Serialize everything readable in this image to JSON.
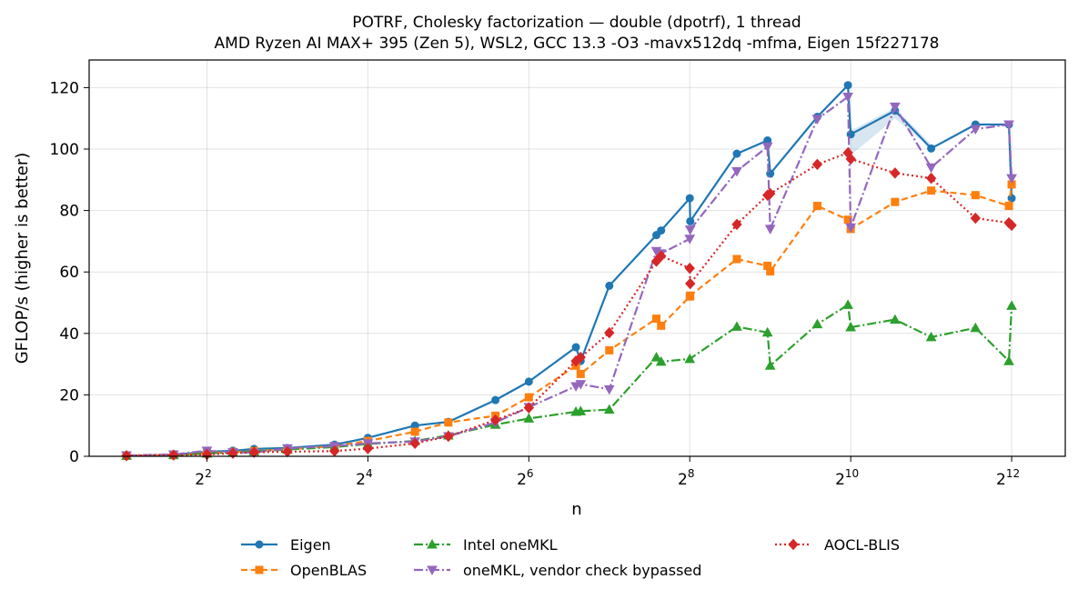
{
  "chart_data": {
    "type": "line",
    "title": "POTRF, Cholesky factorization — double (dpotrf), 1 thread",
    "subtitle": "AMD Ryzen AI MAX+ 395 (Zen 5), WSL2, GCC 13.3 -O3 -mavx512dq -mfma, Eigen 15f227178",
    "xlabel": "n",
    "ylabel": "GFLOP/s (higher is better)",
    "x_scale": "log2",
    "xlim": [
      1.45,
      6500
    ],
    "ylim": [
      0,
      129
    ],
    "x_ticks": [
      {
        "value": 4,
        "base": "2",
        "exp": "2"
      },
      {
        "value": 16,
        "base": "2",
        "exp": "4"
      },
      {
        "value": 64,
        "base": "2",
        "exp": "6"
      },
      {
        "value": 256,
        "base": "2",
        "exp": "8"
      },
      {
        "value": 1024,
        "base": "2",
        "exp": "10"
      },
      {
        "value": 4096,
        "base": "2",
        "exp": "12"
      }
    ],
    "y_ticks": [
      0,
      20,
      40,
      60,
      80,
      100,
      120
    ],
    "grid": true,
    "legend_position": "below",
    "series": [
      {
        "name": "Eigen",
        "color": "#1f77b4",
        "marker": "circle",
        "dash": "",
        "points": [
          [
            2,
            0.2
          ],
          [
            3,
            0.5
          ],
          [
            4,
            1.5
          ],
          [
            5,
            1.8
          ],
          [
            6,
            2.4
          ],
          [
            8,
            2.7
          ],
          [
            12,
            3.8
          ],
          [
            16,
            6.0
          ],
          [
            24,
            10.0
          ],
          [
            32,
            11.2
          ],
          [
            48,
            18.3
          ],
          [
            64,
            24.3
          ],
          [
            96,
            35.5
          ],
          [
            100,
            31.0
          ],
          [
            128,
            55.5
          ],
          [
            192,
            72.0
          ],
          [
            200,
            73.5
          ],
          [
            256,
            84.0
          ],
          [
            257,
            76.5
          ],
          [
            384,
            98.5
          ],
          [
            500,
            102.8
          ],
          [
            512,
            92.0
          ],
          [
            768,
            110.5
          ],
          [
            1000,
            120.8
          ],
          [
            1024,
            104.8
          ],
          [
            1500,
            112.5
          ],
          [
            2048,
            100.2
          ],
          [
            3000,
            108.0
          ],
          [
            4000,
            108.0
          ],
          [
            4096,
            84.0
          ]
        ]
      },
      {
        "name": "OpenBLAS",
        "color": "#ff7f0e",
        "marker": "square",
        "dash": "7,4",
        "points": [
          [
            2,
            0.2
          ],
          [
            3,
            0.4
          ],
          [
            4,
            1.0
          ],
          [
            5,
            1.4
          ],
          [
            6,
            1.7
          ],
          [
            8,
            2.3
          ],
          [
            12,
            3.3
          ],
          [
            16,
            5.0
          ],
          [
            24,
            8.0
          ],
          [
            32,
            11.0
          ],
          [
            48,
            13.2
          ],
          [
            64,
            19.2
          ],
          [
            96,
            29.5
          ],
          [
            100,
            26.8
          ],
          [
            128,
            34.5
          ],
          [
            192,
            44.8
          ],
          [
            200,
            42.5
          ],
          [
            256,
            52.0
          ],
          [
            257,
            52.3
          ],
          [
            384,
            64.2
          ],
          [
            500,
            62.0
          ],
          [
            512,
            60.2
          ],
          [
            768,
            81.5
          ],
          [
            1000,
            77.0
          ],
          [
            1024,
            74.0
          ],
          [
            1500,
            82.8
          ],
          [
            2048,
            86.5
          ],
          [
            3000,
            85.0
          ],
          [
            4000,
            81.5
          ],
          [
            4096,
            88.5
          ]
        ]
      },
      {
        "name": "Intel oneMKL",
        "color": "#2ca02c",
        "marker": "triangle-up",
        "dash": "10,3,2,3",
        "points": [
          [
            2,
            0.2
          ],
          [
            3,
            0.4
          ],
          [
            4,
            0.9
          ],
          [
            5,
            1.3
          ],
          [
            6,
            1.6
          ],
          [
            8,
            2.2
          ],
          [
            12,
            3.0
          ],
          [
            16,
            4.0
          ],
          [
            24,
            5.0
          ],
          [
            32,
            6.8
          ],
          [
            48,
            10.3
          ],
          [
            64,
            12.3
          ],
          [
            96,
            14.5
          ],
          [
            100,
            14.7
          ],
          [
            128,
            15.2
          ],
          [
            192,
            32.2
          ],
          [
            200,
            30.8
          ],
          [
            256,
            31.7
          ],
          [
            384,
            42.2
          ],
          [
            500,
            40.3
          ],
          [
            512,
            29.5
          ],
          [
            768,
            43.0
          ],
          [
            1000,
            49.3
          ],
          [
            1024,
            42.0
          ],
          [
            1500,
            44.5
          ],
          [
            2048,
            38.8
          ],
          [
            3000,
            41.8
          ],
          [
            4000,
            31.0
          ],
          [
            4096,
            49.0
          ]
        ]
      },
      {
        "name": "oneMKL, vendor check bypassed",
        "color": "#9467bd",
        "marker": "triangle-down",
        "dash": "10,3,2,3",
        "points": [
          [
            2,
            0.3
          ],
          [
            3,
            0.6
          ],
          [
            4,
            1.8
          ],
          [
            5,
            1.3
          ],
          [
            6,
            1.2
          ],
          [
            8,
            2.6
          ],
          [
            12,
            3.3
          ],
          [
            16,
            4.2
          ],
          [
            24,
            4.8
          ],
          [
            32,
            6.5
          ],
          [
            48,
            11.0
          ],
          [
            64,
            16.0
          ],
          [
            96,
            22.8
          ],
          [
            100,
            23.5
          ],
          [
            128,
            21.8
          ],
          [
            192,
            66.8
          ],
          [
            200,
            66.0
          ],
          [
            256,
            70.8
          ],
          [
            257,
            73.8
          ],
          [
            384,
            92.8
          ],
          [
            500,
            100.8
          ],
          [
            512,
            74.0
          ],
          [
            768,
            109.8
          ],
          [
            1000,
            117.0
          ],
          [
            1024,
            74.5
          ],
          [
            1500,
            113.8
          ],
          [
            2048,
            94.0
          ],
          [
            3000,
            106.5
          ],
          [
            4000,
            108.0
          ],
          [
            4096,
            90.5
          ]
        ]
      },
      {
        "name": "AOCL-BLIS",
        "color": "#d62728",
        "marker": "diamond",
        "dash": "2,3",
        "points": [
          [
            2,
            0.2
          ],
          [
            3,
            0.4
          ],
          [
            4,
            0.6
          ],
          [
            5,
            1.0
          ],
          [
            6,
            1.3
          ],
          [
            8,
            1.5
          ],
          [
            12,
            1.7
          ],
          [
            16,
            2.5
          ],
          [
            24,
            4.2
          ],
          [
            32,
            6.5
          ],
          [
            48,
            11.8
          ],
          [
            64,
            15.8
          ],
          [
            96,
            31.0
          ],
          [
            100,
            32.2
          ],
          [
            128,
            40.2
          ],
          [
            192,
            63.5
          ],
          [
            200,
            65.2
          ],
          [
            256,
            61.2
          ],
          [
            257,
            56.2
          ],
          [
            384,
            75.5
          ],
          [
            500,
            85.0
          ],
          [
            512,
            85.5
          ],
          [
            768,
            95.0
          ],
          [
            1000,
            98.8
          ],
          [
            1024,
            96.8
          ],
          [
            1500,
            92.2
          ],
          [
            2048,
            90.5
          ],
          [
            3000,
            77.5
          ],
          [
            4000,
            76.0
          ],
          [
            4096,
            75.2
          ]
        ]
      }
    ],
    "band": {
      "series": "Eigen",
      "color": "#1f77b4",
      "x": [
        1024,
        1500,
        2048
      ],
      "lower": [
        98.0,
        110.0,
        100.2
      ],
      "upper": [
        106.0,
        113.5,
        101.5
      ]
    }
  }
}
